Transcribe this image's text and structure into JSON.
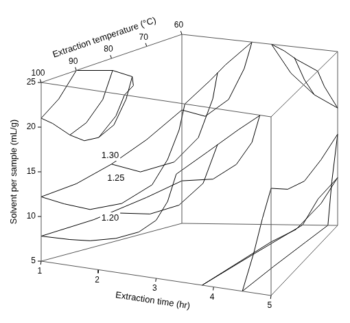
{
  "chart_data": {
    "type": "isosurface3d",
    "x_label": "Extraction time (hr)",
    "y_label": "Extraction temperature (°C)",
    "z_label": "Solvent per sample (mL/g)",
    "xlim": [
      1,
      5
    ],
    "xticks": [
      1,
      2,
      3,
      4,
      5
    ],
    "ylim": [
      60,
      100
    ],
    "yticks": [
      60,
      70,
      80,
      90,
      100
    ],
    "zlim": [
      5,
      25
    ],
    "zticks": [
      5,
      10,
      15,
      20,
      25
    ],
    "color": "#000000",
    "surfaces": [
      {
        "level": {
          "value": 1.3,
          "label": "1.30"
        },
        "label_at": [
          2.2,
          100,
          18
        ],
        "curves": [
          [
            [
              1,
              100,
              21
            ],
            [
              1.2,
              100,
              20.6
            ],
            [
              1.5,
              100,
              19.6
            ],
            [
              1.75,
              100,
              19.2
            ],
            [
              2,
              100,
              19.8
            ],
            [
              2.3,
              100,
              22.5
            ],
            [
              2.45,
              100,
              25
            ]
          ],
          [
            [
              1,
              100,
              21
            ],
            [
              1,
              95,
              22.5
            ],
            [
              1,
              90,
              25
            ]
          ],
          [
            [
              1,
              90,
              25
            ],
            [
              1.5,
              87,
              25
            ],
            [
              2,
              89,
              25
            ],
            [
              2.3,
              94,
              25
            ],
            [
              2.45,
              100,
              25
            ]
          ],
          [
            [
              1.5,
              100,
              19.6
            ],
            [
              1.5,
              95,
              20.3
            ],
            [
              1.5,
              90,
              22.2
            ],
            [
              1.5,
              87,
              25
            ]
          ],
          [
            [
              2,
              100,
              19.8
            ],
            [
              2,
              95,
              20.5
            ],
            [
              2,
              91,
              22.8
            ],
            [
              2,
              89,
              25
            ]
          ],
          [
            [
              3.3,
              60,
              25
            ],
            [
              3.8,
              63,
              25
            ],
            [
              4.3,
              67,
              25
            ],
            [
              5,
              72,
              25
            ]
          ],
          [
            [
              5,
              72,
              25
            ],
            [
              5,
              68,
              22.5
            ],
            [
              5,
              64,
              20.5
            ],
            [
              5,
              60,
              18.5
            ]
          ],
          [
            [
              3.3,
              60,
              25
            ],
            [
              3.8,
              60,
              22
            ],
            [
              4.4,
              60,
              19.8
            ],
            [
              5,
              60,
              18.5
            ]
          ],
          [
            [
              4.2,
              66,
              25
            ],
            [
              4.3,
              63,
              22
            ],
            [
              4.4,
              60,
              19.8
            ]
          ]
        ]
      },
      {
        "level": {
          "value": 1.25,
          "label": "1.25"
        },
        "label_at": [
          2.3,
          100,
          15.5
        ],
        "curves": [
          [
            [
              1,
              100,
              12.2
            ],
            [
              1.4,
              100,
              11.8
            ],
            [
              1.85,
              100,
              11.6
            ],
            [
              2.4,
              100,
              12.8
            ],
            [
              2.93,
              100,
              15.4
            ],
            [
              3.2,
              100,
              18.5
            ],
            [
              3.4,
              100,
              22
            ],
            [
              3.5,
              100,
              25
            ]
          ],
          [
            [
              1,
              100,
              12.2
            ],
            [
              1,
              90,
              12.5
            ],
            [
              1,
              80,
              13.5
            ],
            [
              1,
              70,
              15
            ],
            [
              1,
              60,
              17
            ]
          ],
          [
            [
              3.5,
              100,
              25
            ],
            [
              3.3,
              85,
              25
            ],
            [
              3.1,
              75,
              25
            ],
            [
              2.8,
              60,
              25
            ]
          ],
          [
            [
              1,
              60,
              17
            ],
            [
              1.6,
              60,
              16.5
            ],
            [
              2.2,
              60,
              18.5
            ],
            [
              2.6,
              60,
              22
            ],
            [
              2.8,
              60,
              25
            ]
          ],
          [
            [
              1,
              80,
              13.5
            ],
            [
              1.6,
              80,
              13
            ],
            [
              2.3,
              80,
              14.5
            ],
            [
              2.8,
              80,
              17.5
            ],
            [
              3.1,
              80,
              22
            ],
            [
              3.2,
              80,
              25
            ]
          ],
          [
            [
              5,
              100,
              17
            ],
            [
              5,
              90,
              15
            ],
            [
              5,
              80,
              14
            ],
            [
              5,
              70,
              14.5
            ],
            [
              5,
              60,
              15.5
            ]
          ],
          [
            [
              4.5,
              100,
              5
            ],
            [
              4.7,
              100,
              9.5
            ],
            [
              4.85,
              100,
              13.5
            ],
            [
              5,
              100,
              17
            ]
          ],
          [
            [
              4.5,
              100,
              5
            ],
            [
              4.55,
              85,
              5
            ],
            [
              4.65,
              70,
              5
            ],
            [
              4.75,
              60,
              5
            ]
          ],
          [
            [
              4.75,
              60,
              5
            ],
            [
              4.85,
              60,
              10
            ],
            [
              5,
              60,
              15.5
            ]
          ]
        ]
      },
      {
        "level": {
          "value": 1.2,
          "label": "1.20"
        },
        "label_at": [
          2.2,
          100,
          11
        ],
        "curves": [
          [
            [
              1,
              100,
              7.8
            ],
            [
              1.5,
              100,
              7.9
            ],
            [
              1.85,
              100,
              8.1
            ],
            [
              2.3,
              100,
              8.8
            ],
            [
              2.7,
              100,
              9.9
            ],
            [
              3,
              100,
              11.5
            ],
            [
              3.2,
              100,
              13.8
            ],
            [
              3.35,
              100,
              17
            ]
          ],
          [
            [
              1,
              100,
              7.8
            ],
            [
              1,
              85,
              8
            ],
            [
              1,
              70,
              8.8
            ],
            [
              1,
              60,
              9.5
            ]
          ],
          [
            [
              1,
              60,
              9.5
            ],
            [
              1.8,
              60,
              9.8
            ],
            [
              2.4,
              60,
              11.5
            ],
            [
              2.8,
              60,
              14
            ],
            [
              3,
              60,
              17
            ]
          ],
          [
            [
              3.35,
              100,
              17
            ],
            [
              3.25,
              85,
              17
            ],
            [
              3.1,
              70,
              17
            ],
            [
              3,
              60,
              17
            ]
          ],
          [
            [
              1,
              80,
              8.2
            ],
            [
              1.8,
              80,
              8.5
            ],
            [
              2.4,
              80,
              9.8
            ],
            [
              2.9,
              80,
              12.5
            ],
            [
              3.2,
              80,
              17
            ]
          ],
          [
            [
              5,
              100,
              11
            ],
            [
              5,
              85,
              9.5
            ],
            [
              5,
              70,
              9.5
            ],
            [
              5,
              60,
              10.5
            ]
          ],
          [
            [
              3.8,
              100,
              5
            ],
            [
              4.2,
              100,
              7
            ],
            [
              4.6,
              100,
              9
            ],
            [
              5,
              100,
              11
            ]
          ],
          [
            [
              3.8,
              100,
              5
            ],
            [
              3.9,
              80,
              5
            ],
            [
              4.1,
              60,
              5
            ]
          ],
          [
            [
              4.1,
              60,
              5
            ],
            [
              4.5,
              60,
              8
            ],
            [
              5,
              60,
              10.5
            ]
          ]
        ]
      }
    ]
  }
}
